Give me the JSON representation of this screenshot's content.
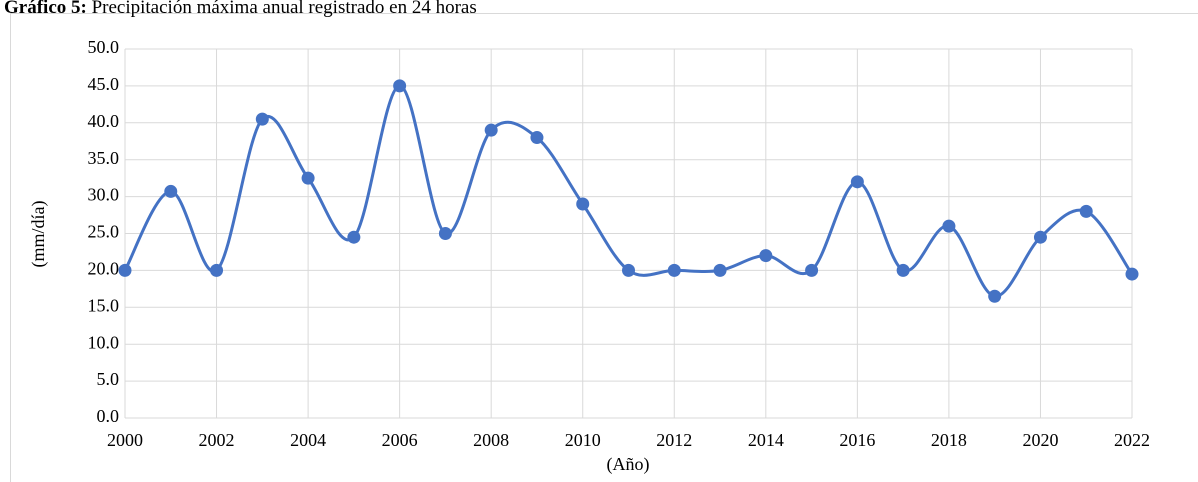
{
  "chart_data": {
    "type": "line",
    "title_label": "Gráfico 5:",
    "title": "Precipitación máxima anual registrado en 24 horas",
    "x_label": "(Año)",
    "y_label": "(mm/día)",
    "x": [
      2000,
      2001,
      2002,
      2003,
      2004,
      2005,
      2006,
      2007,
      2008,
      2009,
      2010,
      2011,
      2012,
      2013,
      2014,
      2015,
      2016,
      2017,
      2018,
      2019,
      2020,
      2021,
      2022
    ],
    "series": [
      {
        "color": "#4472c4",
        "values": [
          20.0,
          30.7,
          20.0,
          40.5,
          32.5,
          24.5,
          45.0,
          25.0,
          39.0,
          38.0,
          29.0,
          20.0,
          20.0,
          20.0,
          22.0,
          20.0,
          32.0,
          20.0,
          26.0,
          16.5,
          24.5,
          28.0,
          19.5
        ]
      }
    ],
    "xlim": [
      2000,
      2022
    ],
    "xticks": [
      2000,
      2002,
      2004,
      2006,
      2008,
      2010,
      2012,
      2014,
      2016,
      2018,
      2020,
      2022
    ],
    "ylim": [
      0,
      50
    ],
    "yticks": [
      {
        "value": 0,
        "label": "0.0"
      },
      {
        "value": 5,
        "label": "5.0"
      },
      {
        "value": 10,
        "label": "10.0"
      },
      {
        "value": 15,
        "label": "15.0"
      },
      {
        "value": 20,
        "label": "20.0"
      },
      {
        "value": 25,
        "label": "25.0"
      },
      {
        "value": 30,
        "label": "30.0"
      },
      {
        "value": 35,
        "label": "35.0"
      },
      {
        "value": 40,
        "label": "40.0"
      },
      {
        "value": 45,
        "label": "45.0"
      },
      {
        "value": 50,
        "label": "50.0"
      }
    ],
    "grid": true,
    "smooth": true
  }
}
